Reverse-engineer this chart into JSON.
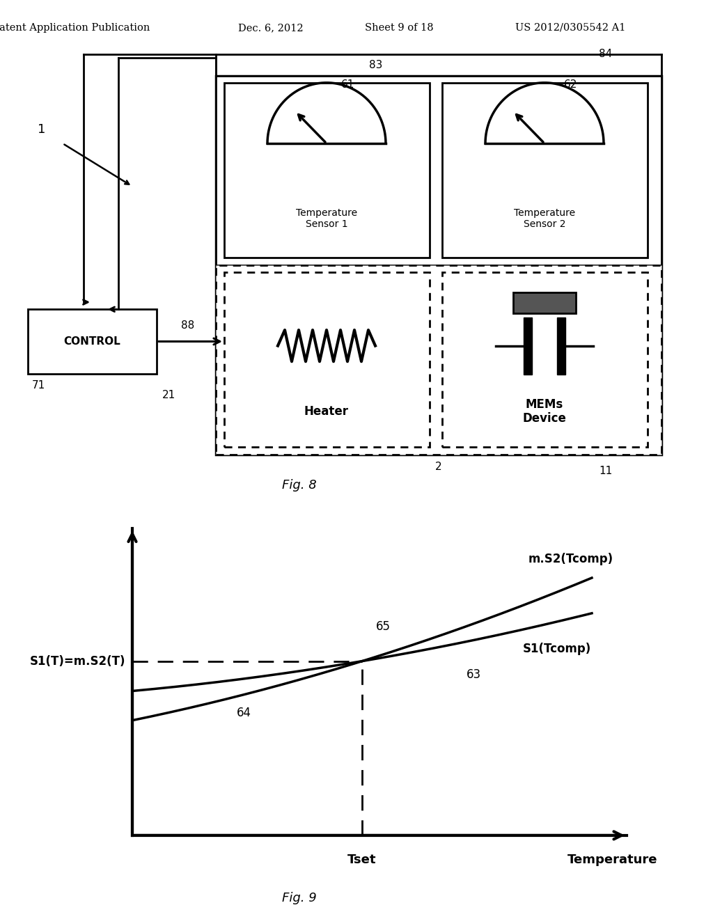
{
  "bg_color": "#ffffff",
  "header_text": "Patent Application Publication",
  "header_date": "Dec. 6, 2012",
  "header_sheet": "Sheet 9 of 18",
  "header_patent": "US 2012/0305542 A1",
  "fig8_label": "Fig. 8",
  "fig9_label": "Fig. 9",
  "label_1": "1",
  "label_2": "2",
  "label_11": "11",
  "label_21": "21",
  "label_61": "61",
  "label_62": "62",
  "label_63": "63",
  "label_64": "64",
  "label_65": "65",
  "label_71": "71",
  "label_83": "83",
  "label_84": "84",
  "label_88": "88",
  "control_text": "CONTROL",
  "heater_text": "Heater",
  "mems_text": "MEMs\nDevice",
  "temp1_text": "Temperature\nSensor 1",
  "temp2_text": "Temperature\nSensor 2",
  "ylabel_fig9": "S1(T)=m.S2(T)",
  "xlabel_fig9": "Temperature",
  "tset_label": "Tset",
  "curve_ms2": "m.S2(Tcomp)",
  "curve_s1": "S1(Tcomp)"
}
